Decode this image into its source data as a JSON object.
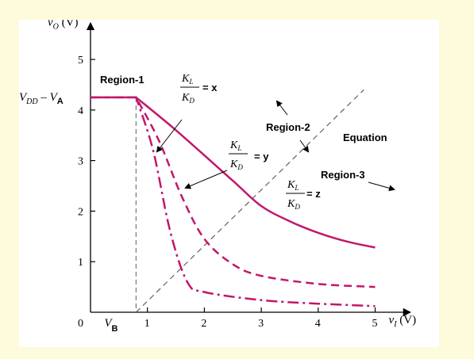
{
  "chart_data": {
    "type": "line",
    "axes": {
      "ylabel_main": "v",
      "ylabel_sub": "O",
      "ylabel_unit": " (V)",
      "xlabel_main": "v",
      "xlabel_sub": "I",
      "xlabel_unit": " (V)",
      "origin_label": "0",
      "xlim": [
        0,
        5.6
      ],
      "ylim": [
        0,
        5.7
      ],
      "x_ticks": [
        "1",
        "2",
        "3",
        "4",
        "5"
      ],
      "y_ticks": [
        "1",
        "2",
        "3",
        "4",
        "5"
      ],
      "grid": false
    },
    "level_label": {
      "main": "V",
      "sub": "DD",
      "tail": " – V",
      "tail_sub": "A",
      "value": 4.25
    },
    "vb_label": {
      "main": "V",
      "sub": "B",
      "value": 0.8
    },
    "series": [
      {
        "key": "x",
        "style": "solid",
        "values": [
          [
            0,
            4.25
          ],
          [
            0.8,
            4.25
          ],
          [
            1.5,
            3.6
          ],
          [
            2.5,
            2.6
          ],
          [
            3.0,
            2.1
          ],
          [
            3.5,
            1.8
          ],
          [
            4.0,
            1.57
          ],
          [
            4.5,
            1.4
          ],
          [
            5.0,
            1.28
          ]
        ]
      },
      {
        "key": "y",
        "style": "dashed",
        "values": [
          [
            0,
            4.25
          ],
          [
            0.8,
            4.25
          ],
          [
            1.2,
            3.4
          ],
          [
            1.6,
            2.3
          ],
          [
            2.0,
            1.45
          ],
          [
            2.5,
            0.95
          ],
          [
            3.0,
            0.72
          ],
          [
            4.0,
            0.56
          ],
          [
            5.0,
            0.5
          ]
        ]
      },
      {
        "key": "z",
        "style": "dashdot",
        "values": [
          [
            0,
            4.25
          ],
          [
            0.8,
            4.25
          ],
          [
            1.1,
            3.2
          ],
          [
            1.4,
            1.6
          ],
          [
            1.7,
            0.6
          ],
          [
            2.0,
            0.4
          ],
          [
            3.0,
            0.24
          ],
          [
            4.0,
            0.17
          ],
          [
            5.0,
            0.12
          ]
        ]
      }
    ],
    "equation_line": {
      "style": "dashed",
      "values": [
        [
          0.8,
          0
        ],
        [
          4.8,
          4.4
        ]
      ]
    },
    "ratio_labels": [
      {
        "num": "K",
        "num_sub": "L",
        "den": "K",
        "den_sub": "D",
        "eq": "= x"
      },
      {
        "num": "K",
        "num_sub": "L",
        "den": "K",
        "den_sub": "D",
        "eq": "= y"
      },
      {
        "num": "K",
        "num_sub": "L",
        "den": "K",
        "den_sub": "D",
        "eq": "= z"
      }
    ],
    "annotations": {
      "region1": "Region-1",
      "region2": "Region-2",
      "region3": "Region-3",
      "equation": "Equation"
    },
    "colors": {
      "curve": "#c2176b",
      "axis": "#000000",
      "equation_line": "#555555",
      "vb_line": "#777777",
      "background": "#fdfbdc"
    }
  }
}
